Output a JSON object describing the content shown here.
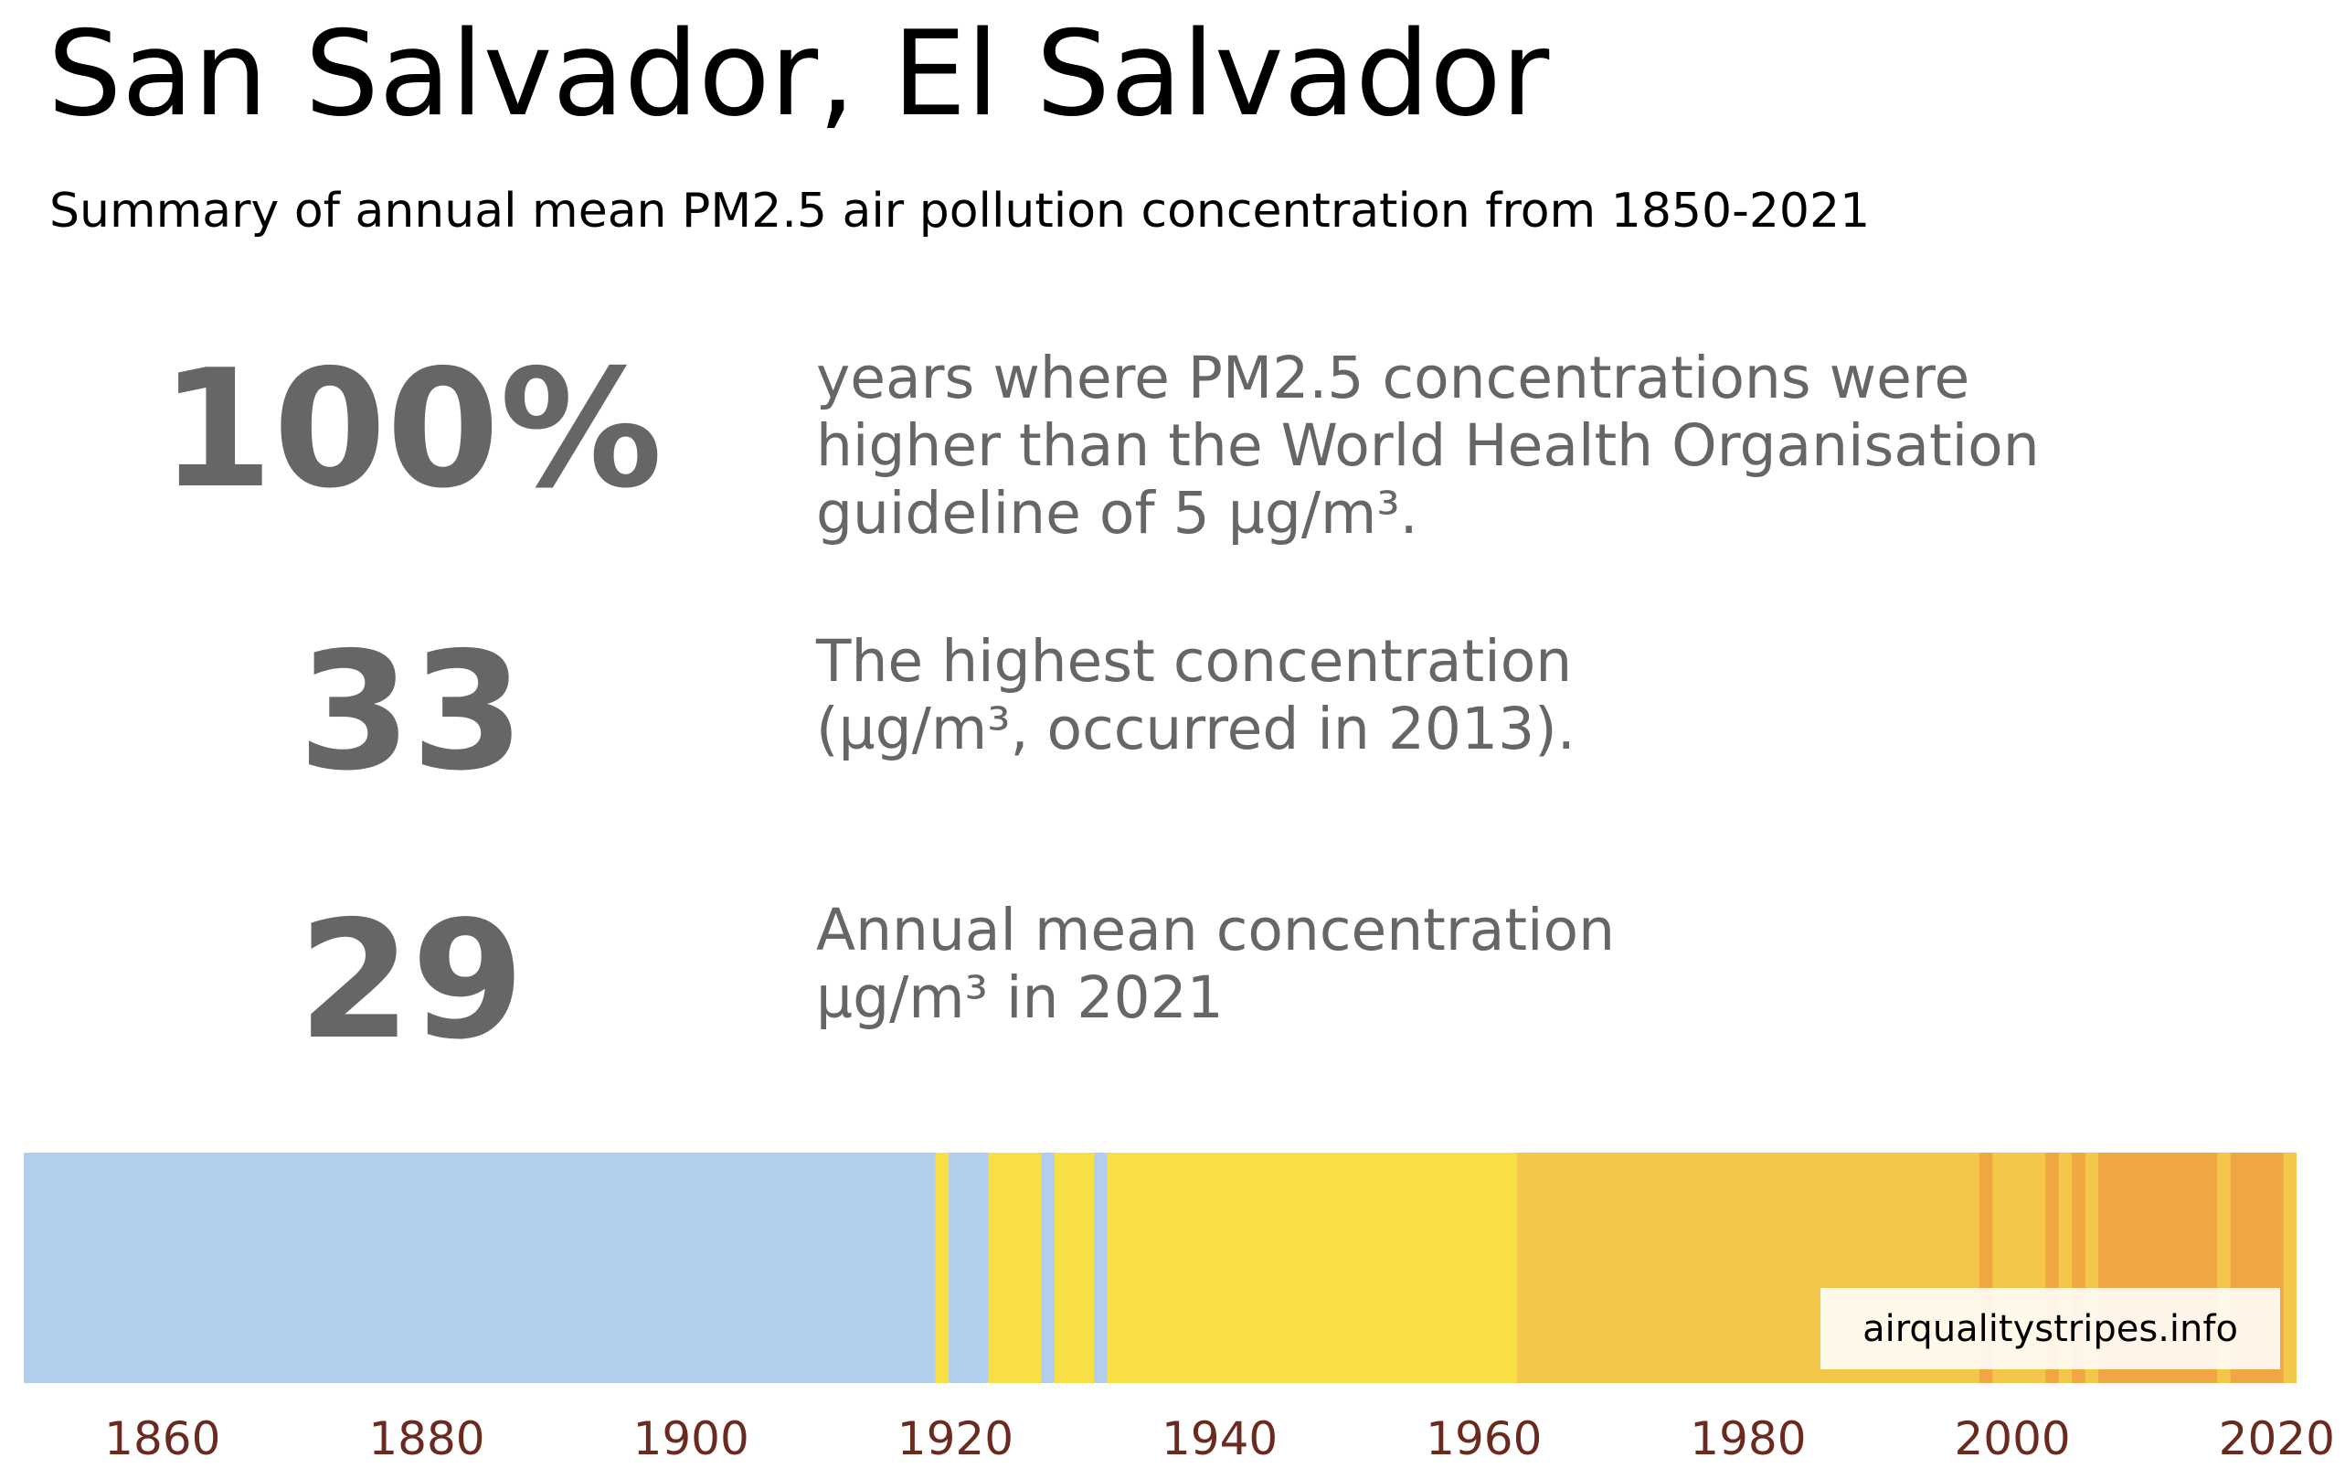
{
  "header": {
    "title": "San Salvador, El Salvador",
    "subtitle": "Summary of annual mean PM2.5 air pollution concentration from 1850-2021"
  },
  "stats": [
    {
      "value": "100%",
      "lines": [
        "years where PM2.5 concentrations were",
        "higher than the World Health Organisation",
        "guideline of 5 µg/m³."
      ]
    },
    {
      "value": "33",
      "lines": [
        "The highest concentration",
        "(µg/m³, occurred in 2013)."
      ]
    },
    {
      "value": "29",
      "lines": [
        "Annual mean concentration",
        "µg/m³ in 2021"
      ]
    }
  ],
  "source_label": "airqualitystripes.info",
  "colors": {
    "blue": "#b0cfed",
    "yellow": "#f8df46",
    "light_orange": "#f2c74a",
    "orange": "#f0a642",
    "stat_grey": "#666666",
    "tick": "#6b2a1f"
  },
  "chart_data": {
    "type": "heatmap",
    "x_range": [
      1850,
      2021
    ],
    "xticks": [
      1860,
      1880,
      1900,
      1920,
      1940,
      1960,
      1980,
      2000,
      2020
    ],
    "stripes": [
      {
        "start": 1850,
        "end": 1918,
        "color": "blue"
      },
      {
        "start": 1919,
        "end": 1919,
        "color": "yellow"
      },
      {
        "start": 1920,
        "end": 1922,
        "color": "blue"
      },
      {
        "start": 1923,
        "end": 1926,
        "color": "yellow"
      },
      {
        "start": 1927,
        "end": 1927,
        "color": "blue"
      },
      {
        "start": 1928,
        "end": 1930,
        "color": "yellow"
      },
      {
        "start": 1931,
        "end": 1931,
        "color": "blue"
      },
      {
        "start": 1932,
        "end": 1962,
        "color": "yellow"
      },
      {
        "start": 1963,
        "end": 1997,
        "color": "light_orange"
      },
      {
        "start": 1998,
        "end": 1998,
        "color": "orange"
      },
      {
        "start": 1999,
        "end": 2002,
        "color": "light_orange"
      },
      {
        "start": 2003,
        "end": 2003,
        "color": "orange"
      },
      {
        "start": 2004,
        "end": 2004,
        "color": "light_orange"
      },
      {
        "start": 2005,
        "end": 2005,
        "color": "orange"
      },
      {
        "start": 2006,
        "end": 2006,
        "color": "light_orange"
      },
      {
        "start": 2007,
        "end": 2015,
        "color": "orange"
      },
      {
        "start": 2016,
        "end": 2016,
        "color": "light_orange"
      },
      {
        "start": 2017,
        "end": 2020,
        "color": "orange"
      },
      {
        "start": 2021,
        "end": 2021,
        "color": "light_orange"
      }
    ]
  }
}
